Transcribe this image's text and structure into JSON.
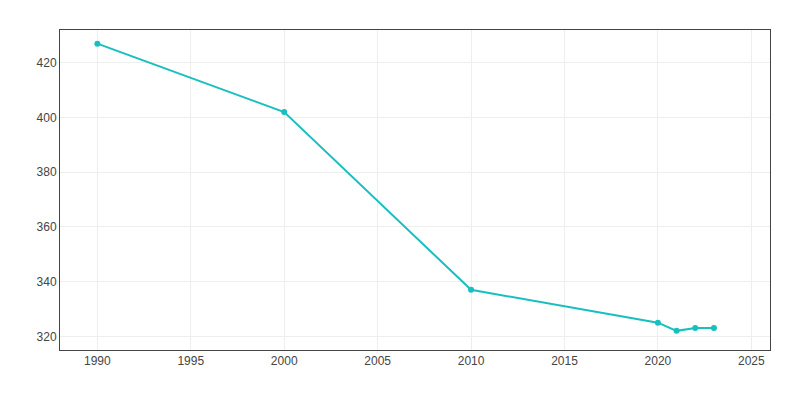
{
  "chart_data": {
    "type": "line",
    "x": [
      1990,
      2000,
      2010,
      2020,
      2021,
      2022,
      2023
    ],
    "values": [
      427,
      402,
      337,
      325,
      322,
      323,
      323
    ],
    "color": "#19bfbf",
    "marker": "circle",
    "xlim": [
      1988,
      2026
    ],
    "xticks": [
      1990,
      1995,
      2000,
      2005,
      2010,
      2015,
      2020,
      2025
    ],
    "ylim": [
      315,
      432
    ],
    "yticks": [
      320,
      340,
      360,
      380,
      400,
      420
    ],
    "grid": true
  }
}
